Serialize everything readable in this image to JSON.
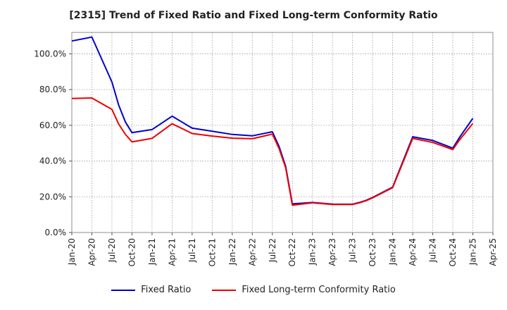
{
  "chart_data": {
    "type": "line",
    "title": "[2315]  Trend of Fixed Ratio and Fixed Long-term Conformity Ratio",
    "xlabel": "",
    "ylabel": "",
    "x_tick_labels": [
      "Jan-20",
      "Apr-20",
      "Jul-20",
      "Oct-20",
      "Jan-21",
      "Apr-21",
      "Jul-21",
      "Oct-21",
      "Jan-22",
      "Apr-22",
      "Jul-22",
      "Oct-22",
      "Jan-23",
      "Apr-23",
      "Jul-23",
      "Oct-23",
      "Jan-24",
      "Apr-24",
      "Jul-24",
      "Oct-24",
      "Jan-25",
      "Apr-25"
    ],
    "y_tick_labels": [
      "0.0%",
      "20.0%",
      "40.0%",
      "60.0%",
      "80.0%",
      "100.0%"
    ],
    "y_ticks": [
      0,
      20,
      40,
      60,
      80,
      100
    ],
    "ylim": [
      0,
      112
    ],
    "grid": true,
    "legend_position": "bottom",
    "series": [
      {
        "name": "Fixed Ratio",
        "color": "#0000cc",
        "points": [
          [
            "2020-01",
            107.2
          ],
          [
            "2020-04",
            109.4
          ],
          [
            "2020-07",
            84.2
          ],
          [
            "2020-08",
            71.5
          ],
          [
            "2020-09",
            62.0
          ],
          [
            "2020-10",
            55.9
          ],
          [
            "2021-01",
            57.6
          ],
          [
            "2021-04",
            65.1
          ],
          [
            "2021-07",
            58.4
          ],
          [
            "2021-10",
            56.7
          ],
          [
            "2022-01",
            54.9
          ],
          [
            "2022-04",
            54.1
          ],
          [
            "2022-07",
            56.4
          ],
          [
            "2022-08",
            48.2
          ],
          [
            "2022-09",
            37.0
          ],
          [
            "2022-10",
            16.0
          ],
          [
            "2023-01",
            16.8
          ],
          [
            "2023-04",
            15.9
          ],
          [
            "2023-07",
            15.8
          ],
          [
            "2023-08",
            16.8
          ],
          [
            "2023-09",
            18.0
          ],
          [
            "2023-10",
            19.6
          ],
          [
            "2024-01",
            25.4
          ],
          [
            "2024-04",
            53.6
          ],
          [
            "2024-07",
            51.5
          ],
          [
            "2024-10",
            47.2
          ],
          [
            "2024-11",
            53.2
          ],
          [
            "2025-01",
            63.9
          ]
        ]
      },
      {
        "name": "Fixed Long-term Conformity Ratio",
        "color": "#ee0000",
        "points": [
          [
            "2020-01",
            75.0
          ],
          [
            "2020-04",
            75.3
          ],
          [
            "2020-07",
            68.9
          ],
          [
            "2020-08",
            60.8
          ],
          [
            "2020-09",
            55.0
          ],
          [
            "2020-10",
            50.7
          ],
          [
            "2021-01",
            52.7
          ],
          [
            "2021-04",
            60.9
          ],
          [
            "2021-07",
            55.4
          ],
          [
            "2021-10",
            54.0
          ],
          [
            "2022-01",
            52.8
          ],
          [
            "2022-04",
            52.5
          ],
          [
            "2022-07",
            55.1
          ],
          [
            "2022-08",
            47.0
          ],
          [
            "2022-09",
            36.2
          ],
          [
            "2022-10",
            15.3
          ],
          [
            "2023-01",
            16.6
          ],
          [
            "2023-04",
            15.7
          ],
          [
            "2023-07",
            15.7
          ],
          [
            "2023-08",
            16.6
          ],
          [
            "2023-09",
            17.8
          ],
          [
            "2023-10",
            19.4
          ],
          [
            "2024-01",
            25.1
          ],
          [
            "2024-04",
            52.7
          ],
          [
            "2024-07",
            50.4
          ],
          [
            "2024-10",
            46.4
          ],
          [
            "2024-11",
            51.8
          ],
          [
            "2025-01",
            61.0
          ]
        ]
      }
    ]
  }
}
